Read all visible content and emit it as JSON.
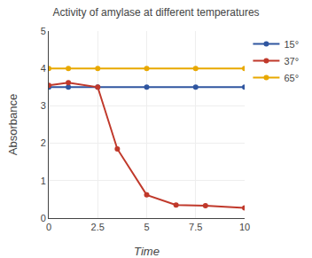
{
  "chart_data": {
    "type": "line",
    "title": "Activity of amylase at different temperatures",
    "x_label": "Time",
    "y_label": "Absorbance",
    "xlim": [
      0,
      10
    ],
    "ylim": [
      0,
      5
    ],
    "xticks": [
      0,
      2.5,
      5,
      7.5,
      10
    ],
    "yticks": [
      0,
      1,
      2,
      3,
      4,
      5
    ],
    "grid": true,
    "legend": "right",
    "marker": "circle",
    "series": [
      {
        "name": "15°",
        "color": "#3056A0",
        "x": [
          0,
          1,
          2.5,
          5,
          7.5,
          10
        ],
        "values": [
          3.5,
          3.5,
          3.5,
          3.5,
          3.5,
          3.5
        ]
      },
      {
        "name": "37°",
        "color": "#C0392B",
        "x": [
          0,
          1,
          2.5,
          3.5,
          5,
          6.5,
          8,
          10
        ],
        "values": [
          3.55,
          3.62,
          3.5,
          1.85,
          0.62,
          0.35,
          0.33,
          0.27
        ]
      },
      {
        "name": "65°",
        "color": "#E8A800",
        "x": [
          0,
          1,
          2.5,
          5,
          7.5,
          10
        ],
        "values": [
          4.0,
          4.0,
          4.0,
          4.0,
          4.0,
          4.0
        ]
      }
    ]
  }
}
